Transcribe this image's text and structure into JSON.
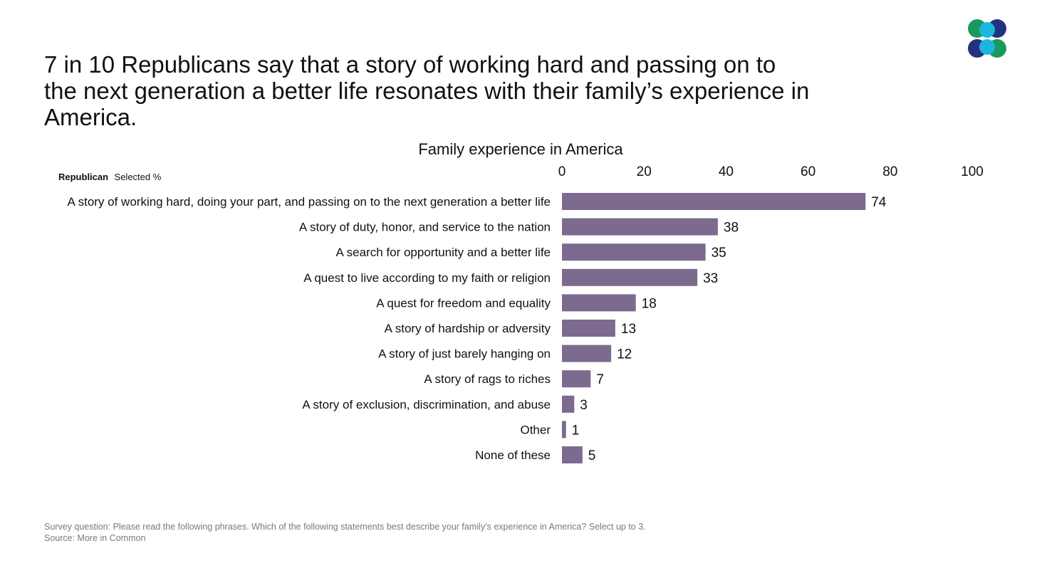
{
  "headline": "7 in 10 Republicans say that a story of working hard and passing on to the next generation a better life resonates with their family’s experience in America.",
  "legend": {
    "group": "Republican",
    "measure": "Selected %"
  },
  "colors": {
    "bar": "#7d6a8f",
    "logo_green": "#1a9a5a",
    "logo_cyan": "#1ab6e0",
    "logo_navy": "#23327e"
  },
  "logo": {
    "icon": "four-circle-logo-icon"
  },
  "chart_data": {
    "type": "bar",
    "orientation": "horizontal",
    "title": "Family experience in America",
    "xlim": [
      0,
      100
    ],
    "ticks": [
      0,
      20,
      40,
      60,
      80,
      100
    ],
    "axis_position": "top",
    "grid": false,
    "categories": [
      "A story of working hard, doing your part, and passing on to the next generation a better life",
      "A story of duty, honor, and service to the nation",
      "A search for opportunity and a better life",
      "A quest to live according to my faith or religion",
      "A quest for freedom and equality",
      "A story of hardship or adversity",
      "A story of just barely hanging on",
      "A story of rags to riches",
      "A story of exclusion, discrimination, and abuse",
      "Other",
      "None of these"
    ],
    "values": [
      74,
      38,
      35,
      33,
      18,
      13,
      12,
      7,
      3,
      1,
      5
    ]
  },
  "footnote": {
    "question": "Survey question: Please read the following phrases. Which of the following statements best describe your family’s experience in America? Select up to 3.",
    "source": "Source: More in Common"
  }
}
